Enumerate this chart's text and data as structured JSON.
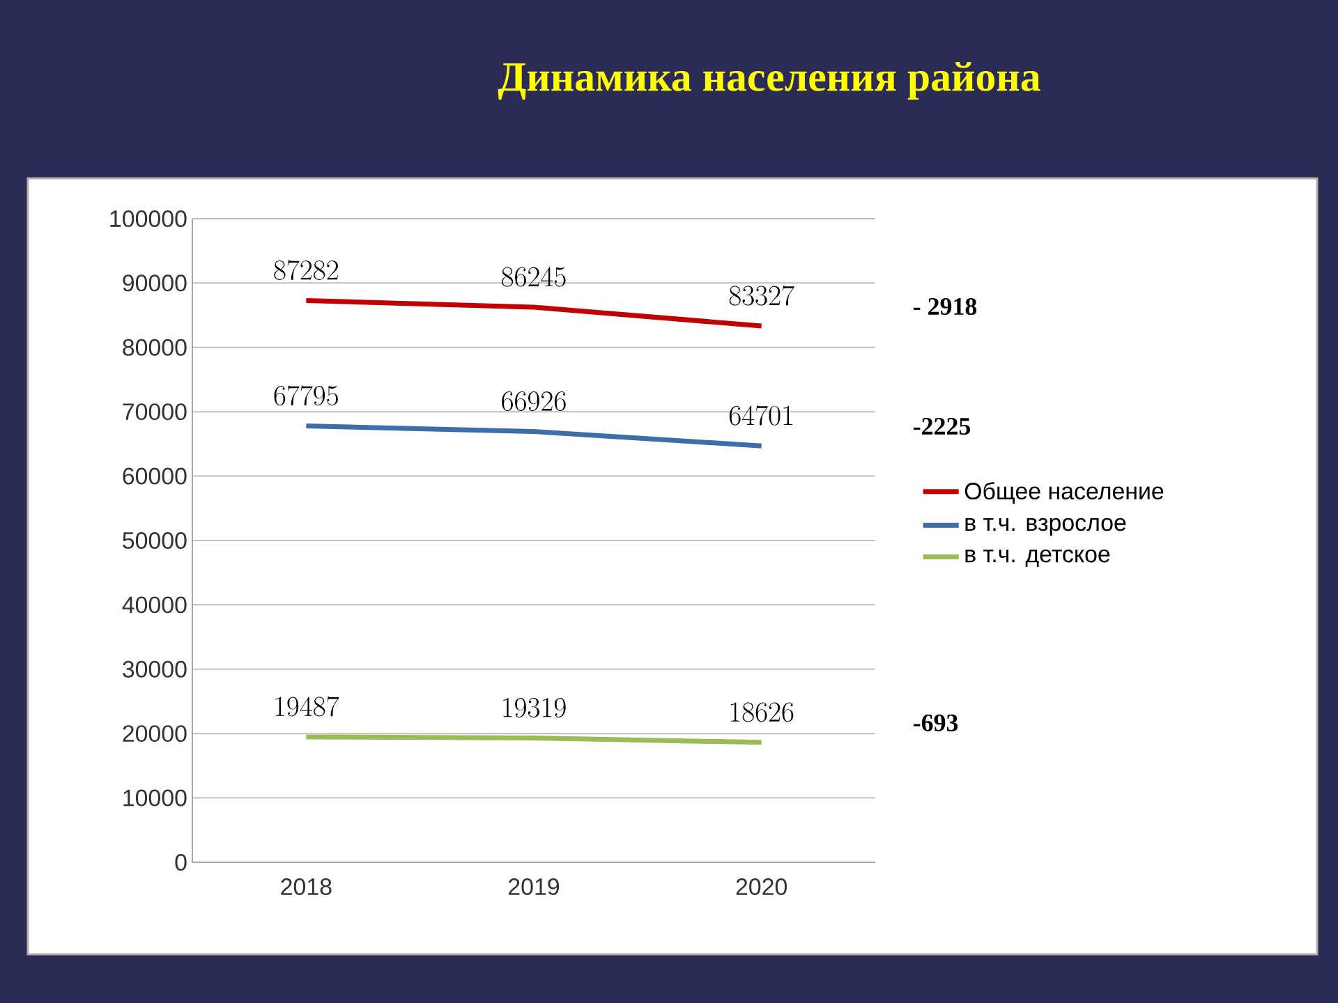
{
  "chart_data": {
    "type": "line",
    "title": "Динамика населения района",
    "categories": [
      "2018",
      "2019",
      "2020"
    ],
    "series": [
      {
        "name": "Общее население",
        "color": "#c00000",
        "values": [
          87282,
          86245,
          83327
        ]
      },
      {
        "name": "в т.ч. взрослое",
        "color": "#3c6ea8",
        "values": [
          67795,
          66926,
          64701
        ]
      },
      {
        "name": "в т.ч. детское",
        "color": "#9bbb59",
        "values": [
          19487,
          19319,
          18626
        ]
      }
    ],
    "ylim": [
      0,
      100000
    ],
    "yticks": [
      0,
      10000,
      20000,
      30000,
      40000,
      50000,
      60000,
      70000,
      80000,
      90000,
      100000
    ],
    "grid": "y",
    "legend": "right",
    "marker": "none",
    "line_style": "solid",
    "data_labels": true,
    "annotations": [
      "- 2918",
      "-2225",
      "-693"
    ]
  }
}
